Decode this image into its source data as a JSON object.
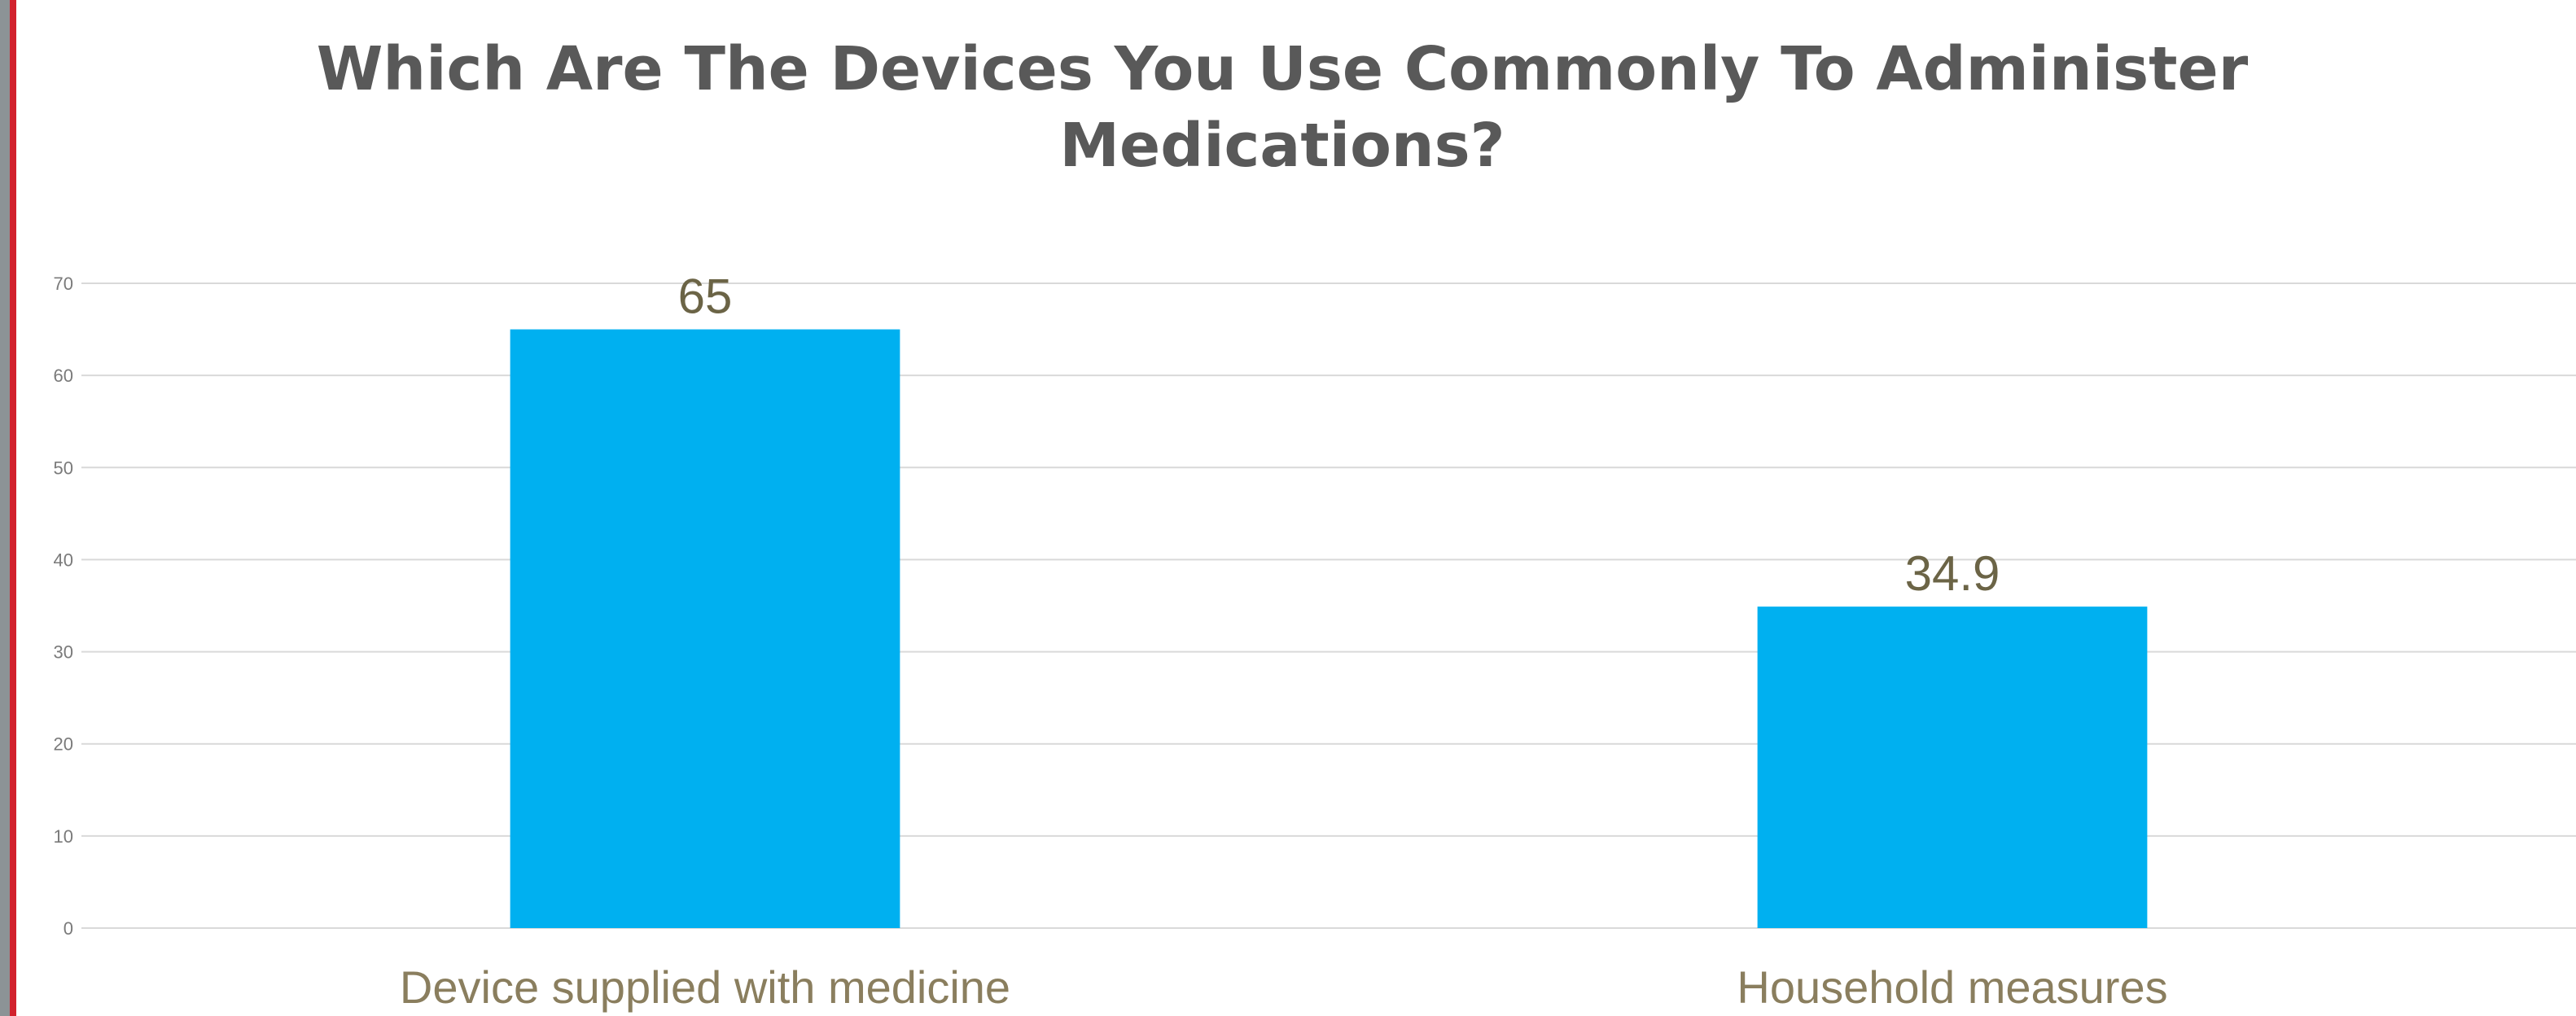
{
  "chart_data": {
    "type": "bar",
    "title": "Which Are The Devices You Use Commonly To Administer Medications?",
    "categories": [
      "Device supplied with medicine",
      "Household measures"
    ],
    "values": [
      65,
      34.9
    ],
    "data_labels": [
      "65",
      "34.9"
    ],
    "xlabel": "",
    "ylabel": "",
    "ylim": [
      0,
      70
    ],
    "yticks": [
      0,
      10,
      20,
      30,
      40,
      50,
      60,
      70
    ],
    "grid": true,
    "legend": "none",
    "bar_color": "#00b0f0"
  }
}
